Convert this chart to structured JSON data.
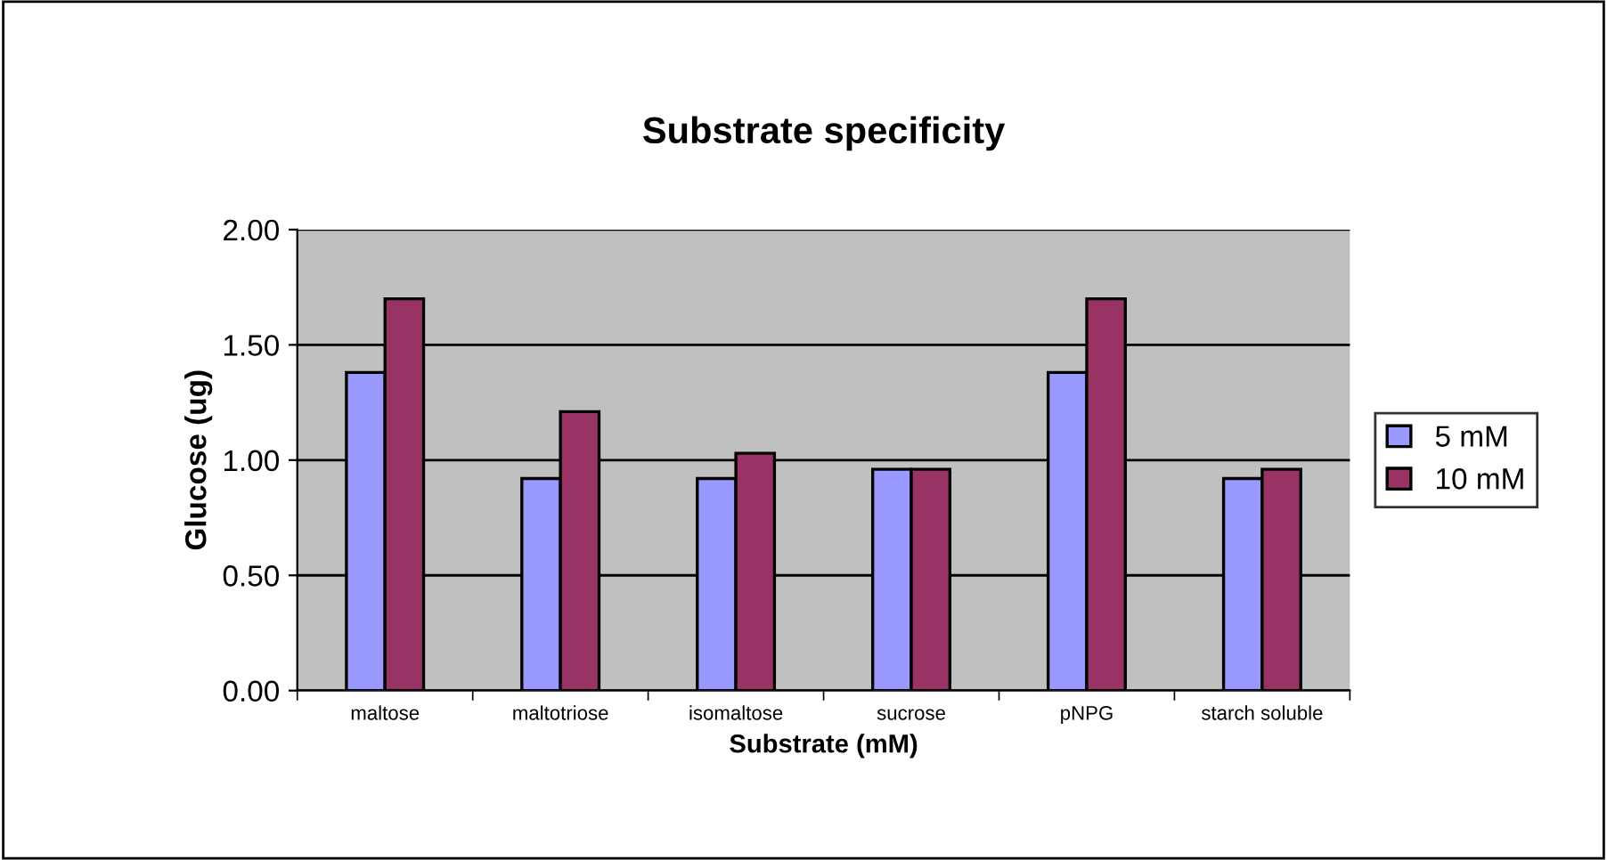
{
  "chart_data": {
    "type": "bar",
    "title": "Substrate specificity",
    "xlabel": "Substrate (mM)",
    "ylabel": "Glucose (ug)",
    "categories": [
      "maltose",
      "maltotriose",
      "isomaltose",
      "sucrose",
      "pNPG",
      "starch soluble"
    ],
    "series": [
      {
        "name": "5 mM",
        "color": "#9999ff",
        "values": [
          1.38,
          0.92,
          0.92,
          0.96,
          1.38,
          0.92
        ]
      },
      {
        "name": "10 mM",
        "color": "#993366",
        "values": [
          1.7,
          1.21,
          1.03,
          0.96,
          1.7,
          0.96
        ]
      }
    ],
    "ylim": [
      0,
      2
    ],
    "yticks": [
      {
        "value": 0,
        "label": "0.00"
      },
      {
        "value": 0.5,
        "label": "0.50"
      },
      {
        "value": 1,
        "label": "1.00"
      },
      {
        "value": 1.5,
        "label": "1.50"
      },
      {
        "value": 2,
        "label": "2.00"
      }
    ],
    "grid": "y",
    "legend": "right"
  }
}
